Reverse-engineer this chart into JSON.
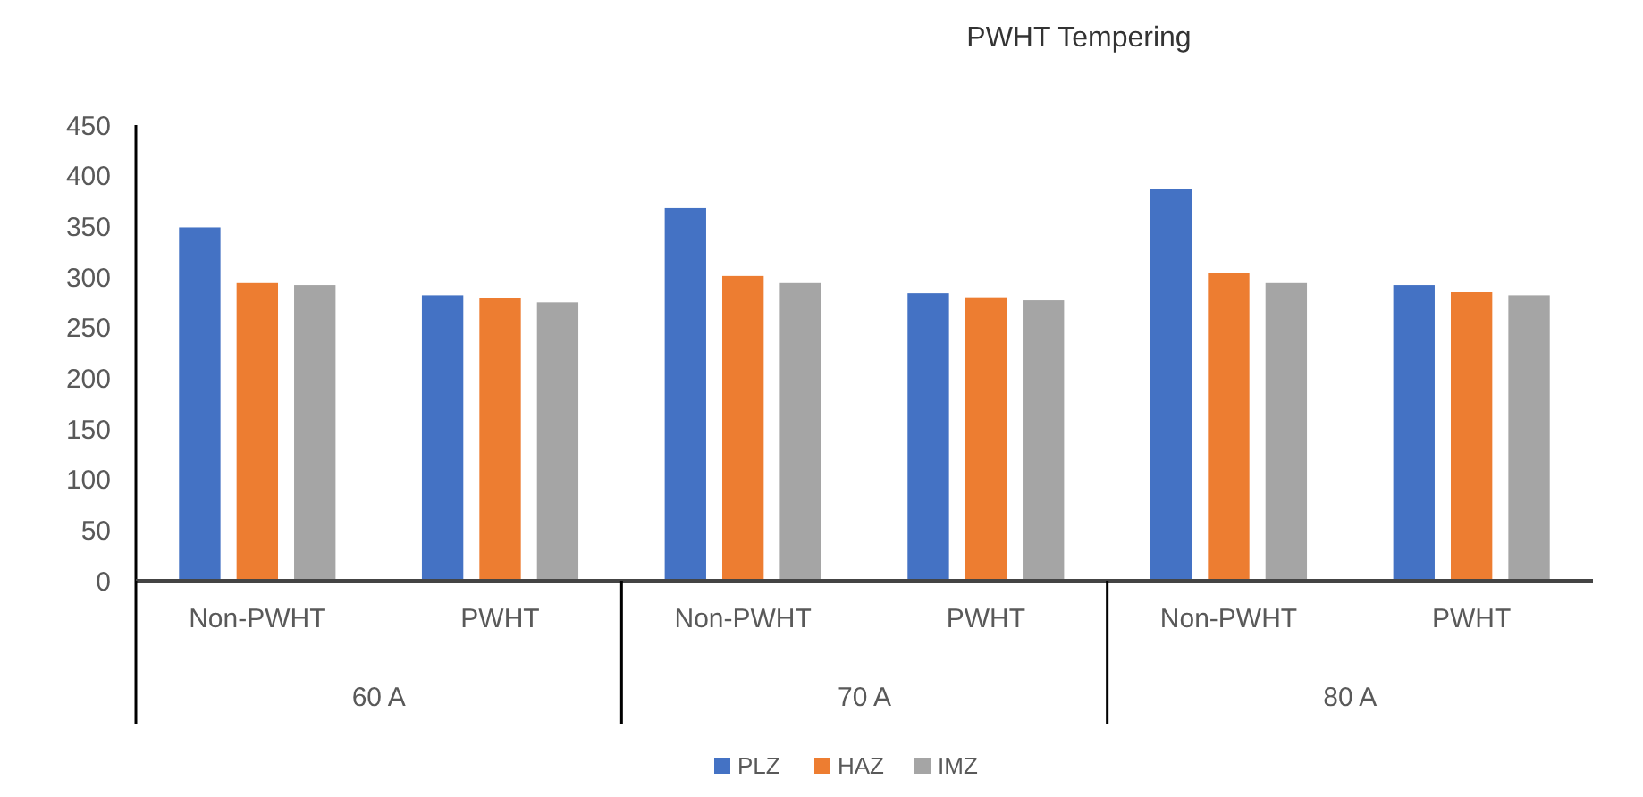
{
  "chart_data": {
    "type": "bar",
    "title": "PWHT Tempering",
    "categories": [
      "Non-PWHT",
      "PWHT",
      "Non-PWHT",
      "PWHT",
      "Non-PWHT",
      "PWHT"
    ],
    "series": [
      {
        "name": "PLZ",
        "color": "#4472c4",
        "values": [
          349,
          282,
          368,
          284,
          387,
          292
        ]
      },
      {
        "name": "HAZ",
        "color": "#ed7d31",
        "values": [
          294,
          279,
          301,
          280,
          304,
          285
        ]
      },
      {
        "name": "IMZ",
        "color": "#a5a5a5",
        "values": [
          292,
          275,
          294,
          277,
          294,
          282
        ]
      }
    ],
    "annotations": [
      "60 A",
      "70 A",
      "80 A"
    ],
    "ylim": [
      0,
      450
    ],
    "yticks": [
      0,
      50,
      100,
      150,
      200,
      250,
      300,
      350,
      400,
      450
    ],
    "grid": false,
    "legend": "bottom"
  }
}
